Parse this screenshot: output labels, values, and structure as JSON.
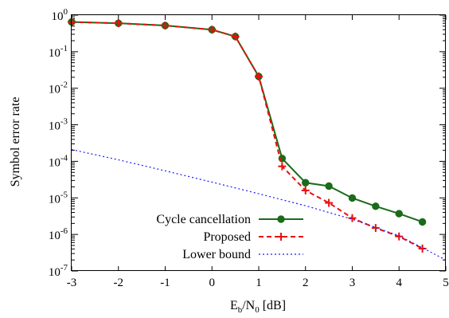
{
  "chart_data": {
    "type": "line",
    "xlabel": "E_b/N_0 [dB]",
    "xlabel_parts": {
      "main1": "E",
      "sub1": "b",
      "slash": "/N",
      "sub2": "0",
      "unit": " [dB]"
    },
    "ylabel": "Symbol error rate",
    "xlim": [
      -3,
      5
    ],
    "ylim": [
      1e-07,
      1
    ],
    "yscale": "log",
    "xticks": [
      -3,
      -2,
      -1,
      0,
      1,
      2,
      3,
      4,
      5
    ],
    "xtick_labels": [
      "-3",
      "-2",
      "-1",
      "0",
      "1",
      "2",
      "3",
      "4",
      "5"
    ],
    "yticks": [
      {
        "value": 1,
        "base": "10",
        "exp": "0"
      },
      {
        "value": 0.1,
        "base": "10",
        "exp": "-1"
      },
      {
        "value": 0.01,
        "base": "10",
        "exp": "-2"
      },
      {
        "value": 0.001,
        "base": "10",
        "exp": "-3"
      },
      {
        "value": 0.0001,
        "base": "10",
        "exp": "-4"
      },
      {
        "value": 1e-05,
        "base": "10",
        "exp": "-5"
      },
      {
        "value": 1e-06,
        "base": "10",
        "exp": "-6"
      },
      {
        "value": 1e-07,
        "base": "10",
        "exp": "-7"
      }
    ],
    "grid": false,
    "legend_position": "bottom-left",
    "series": [
      {
        "name": "Cycle cancellation",
        "color": "#1a6b1a",
        "marker": "circle",
        "dash": "solid",
        "x": [
          -3,
          -2,
          -1,
          0,
          0.5,
          1,
          1.5,
          2,
          2.5,
          3,
          3.5,
          4,
          4.5
        ],
        "y": [
          0.65,
          0.6,
          0.52,
          0.4,
          0.26,
          0.021,
          0.00012,
          2.6e-05,
          2.1e-05,
          9.9e-06,
          5.9e-06,
          3.7e-06,
          2.2e-06
        ]
      },
      {
        "name": "Proposed",
        "color": "#e8110f",
        "marker": "plus",
        "dash": "dashed",
        "x": [
          -3,
          -2,
          -1,
          0,
          0.5,
          1,
          1.5,
          2,
          2.5,
          3,
          3.5,
          4,
          4.5
        ],
        "y": [
          0.65,
          0.6,
          0.52,
          0.4,
          0.26,
          0.021,
          7.3e-05,
          1.6e-05,
          7.3e-06,
          2.8e-06,
          1.5e-06,
          8.8e-07,
          4.1e-07
        ]
      },
      {
        "name": "Lower bound",
        "color": "#1a1aff",
        "marker": "none",
        "dash": "dotted",
        "x": [
          -3,
          -2,
          -1,
          0,
          1,
          2,
          3,
          4,
          5
        ],
        "y": [
          0.00021,
          0.00011,
          5.5e-05,
          2.7e-05,
          1.3e-05,
          6.1e-06,
          2.6e-06,
          9.2e-07,
          2e-07
        ]
      }
    ]
  }
}
